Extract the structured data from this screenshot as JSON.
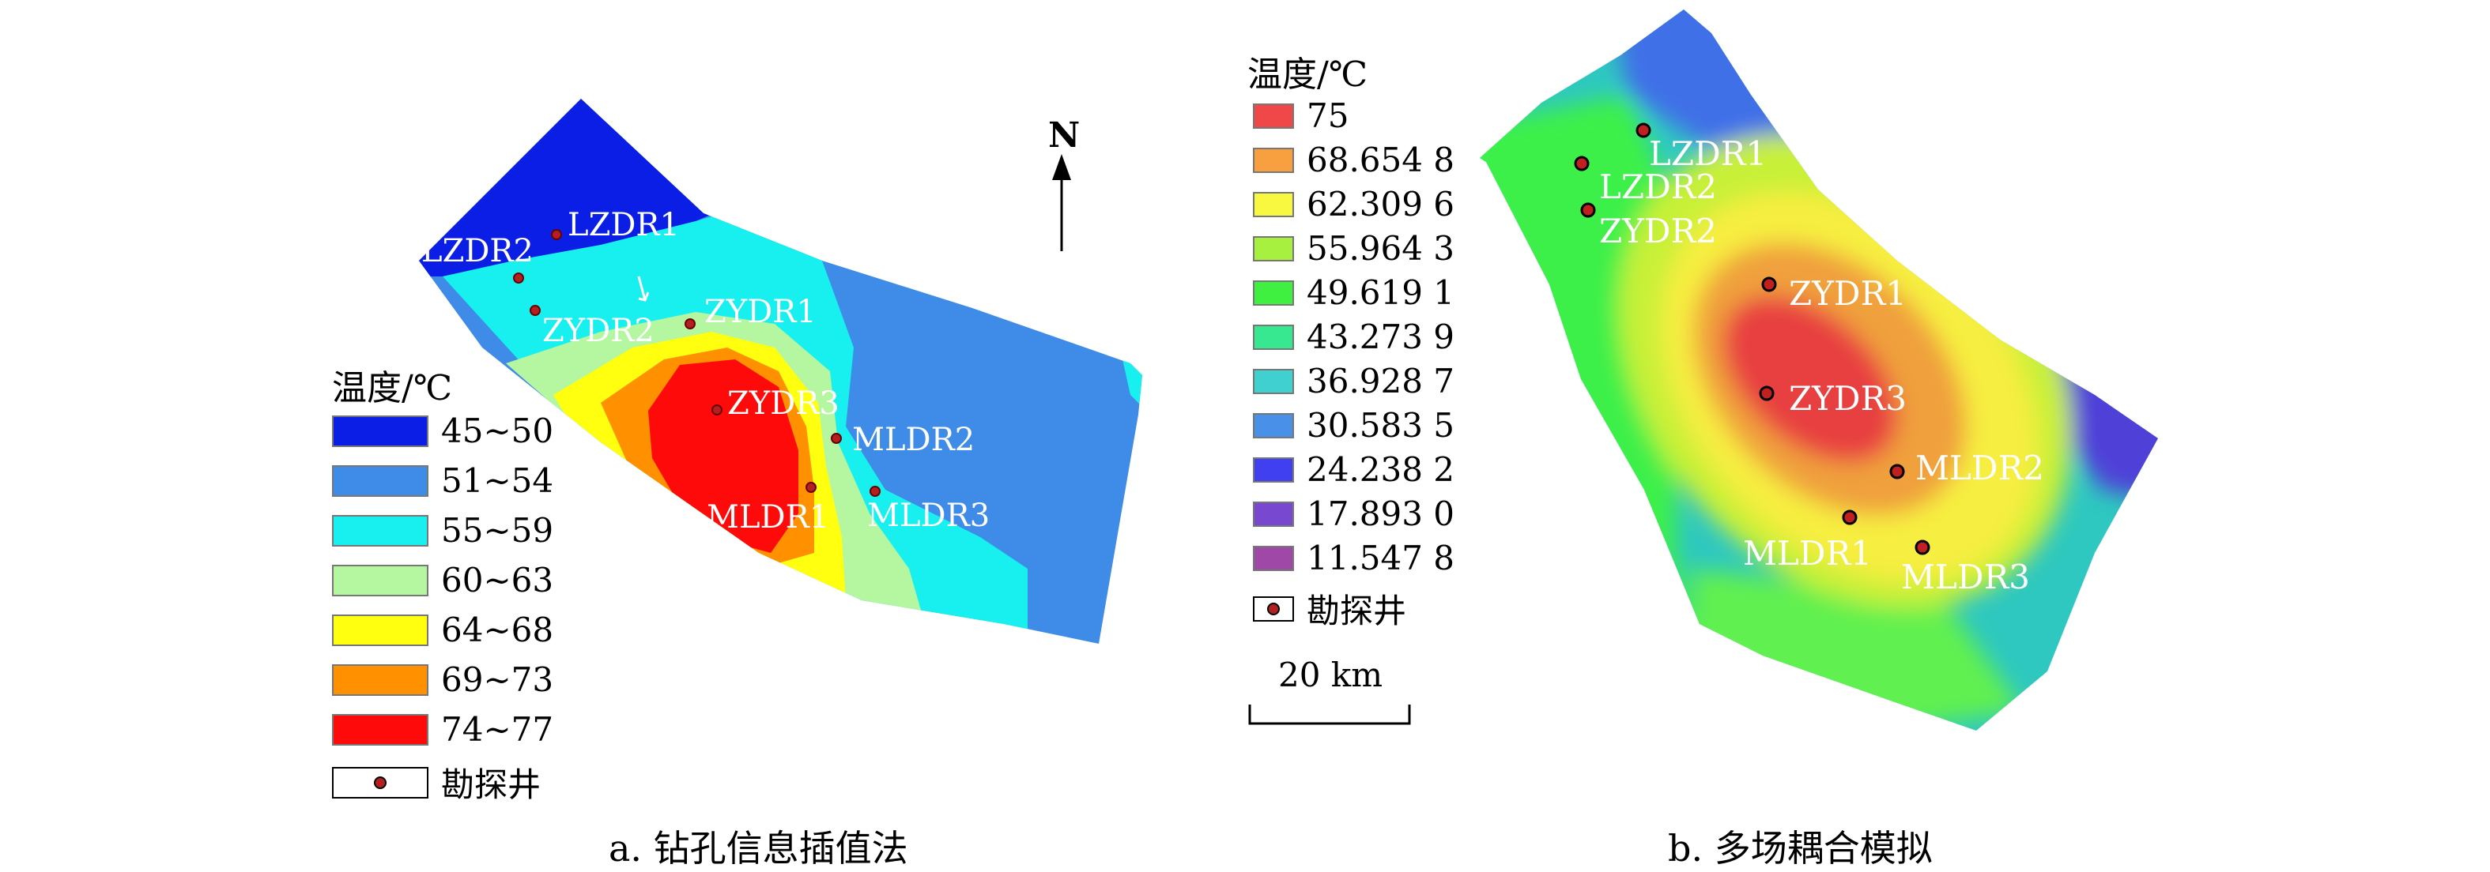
{
  "panel_a": {
    "caption": "a. 钻孔信息插值法",
    "north_label": "N",
    "legend_title": "温度/℃",
    "legend": [
      {
        "label": "45~50",
        "color": "#0a1ee6"
      },
      {
        "label": "51~54",
        "color": "#3f8be8"
      },
      {
        "label": "55~59",
        "color": "#18f0f0"
      },
      {
        "label": "60~63",
        "color": "#b4f7a0"
      },
      {
        "label": "64~68",
        "color": "#ffff10"
      },
      {
        "label": "69~73",
        "color": "#ff9000"
      },
      {
        "label": "74~77",
        "color": "#ff0a0a"
      }
    ],
    "well_legend_label": "勘探井",
    "wells": [
      {
        "name": "LZDR1"
      },
      {
        "name": "LZDR2"
      },
      {
        "name": "ZYDR2"
      },
      {
        "name": "ZYDR1"
      },
      {
        "name": "ZYDR3"
      },
      {
        "name": "MLDR2"
      },
      {
        "name": "MLDR1"
      },
      {
        "name": "MLDR3"
      }
    ]
  },
  "panel_b": {
    "caption": "b. 多场耦合模拟",
    "legend_title": "温度/℃",
    "legend": [
      {
        "label": "75",
        "color": "#f04848"
      },
      {
        "label": "68.654 8",
        "color": "#f8a040"
      },
      {
        "label": "62.309 6",
        "color": "#f8f840"
      },
      {
        "label": "55.964 3",
        "color": "#a8f040"
      },
      {
        "label": "49.619 1",
        "color": "#40f040"
      },
      {
        "label": "43.273 9",
        "color": "#38e890"
      },
      {
        "label": "36.928 7",
        "color": "#40d0d0"
      },
      {
        "label": "30.583 5",
        "color": "#4890e8"
      },
      {
        "label": "24.238 2",
        "color": "#4040f0"
      },
      {
        "label": "17.893 0",
        "color": "#7848d0"
      },
      {
        "label": "11.547 8",
        "color": "#a048a8"
      }
    ],
    "well_legend_label": "勘探井",
    "scale_label": "20 km",
    "wells": [
      {
        "name": "LZDR1"
      },
      {
        "name": "LZDR2"
      },
      {
        "name": "ZYDR2"
      },
      {
        "name": "ZYDR1"
      },
      {
        "name": "ZYDR3"
      },
      {
        "name": "MLDR2"
      },
      {
        "name": "MLDR1"
      },
      {
        "name": "MLDR3"
      }
    ]
  }
}
